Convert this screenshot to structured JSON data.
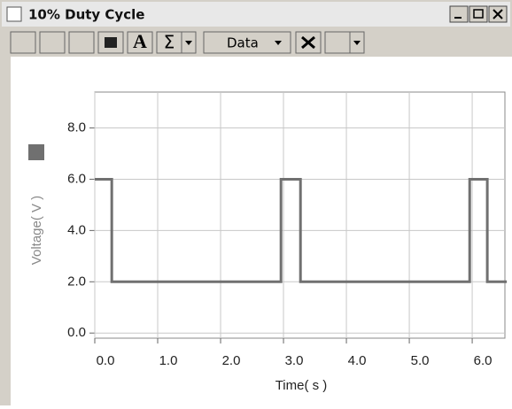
{
  "window": {
    "title": "10% Duty Cycle",
    "toolbar": {
      "font_button": "A",
      "sum_button": "Σ",
      "data_menu": "Data"
    }
  },
  "chart_data": {
    "type": "line",
    "xlabel": "Time( s )",
    "ylabel": "Voltage( V )",
    "series": [
      {
        "color": "#707070",
        "x": [
          0,
          0.27,
          0.27,
          2.96,
          2.96,
          3.27,
          3.27,
          5.96,
          5.96,
          6.24,
          6.24,
          6.55
        ],
        "values": [
          6,
          6,
          2,
          2,
          6,
          6,
          2,
          2,
          6,
          6,
          2,
          2
        ]
      }
    ],
    "xlim": [
      0,
      6.52
    ],
    "ylim": [
      -0.2,
      9.4
    ],
    "xticks": [
      {
        "value": 0,
        "label": "0.0"
      },
      {
        "value": 1,
        "label": "1.0"
      },
      {
        "value": 2,
        "label": "2.0"
      },
      {
        "value": 3,
        "label": "3.0"
      },
      {
        "value": 4,
        "label": "4.0"
      },
      {
        "value": 5,
        "label": "5.0"
      },
      {
        "value": 6,
        "label": "6.0"
      }
    ],
    "yticks": [
      {
        "value": 0,
        "label": "0.0"
      },
      {
        "value": 2,
        "label": "2.0"
      },
      {
        "value": 4,
        "label": "4.0"
      },
      {
        "value": 6,
        "label": "6.0"
      },
      {
        "value": 8,
        "label": "8.0"
      }
    ],
    "grid": true
  }
}
